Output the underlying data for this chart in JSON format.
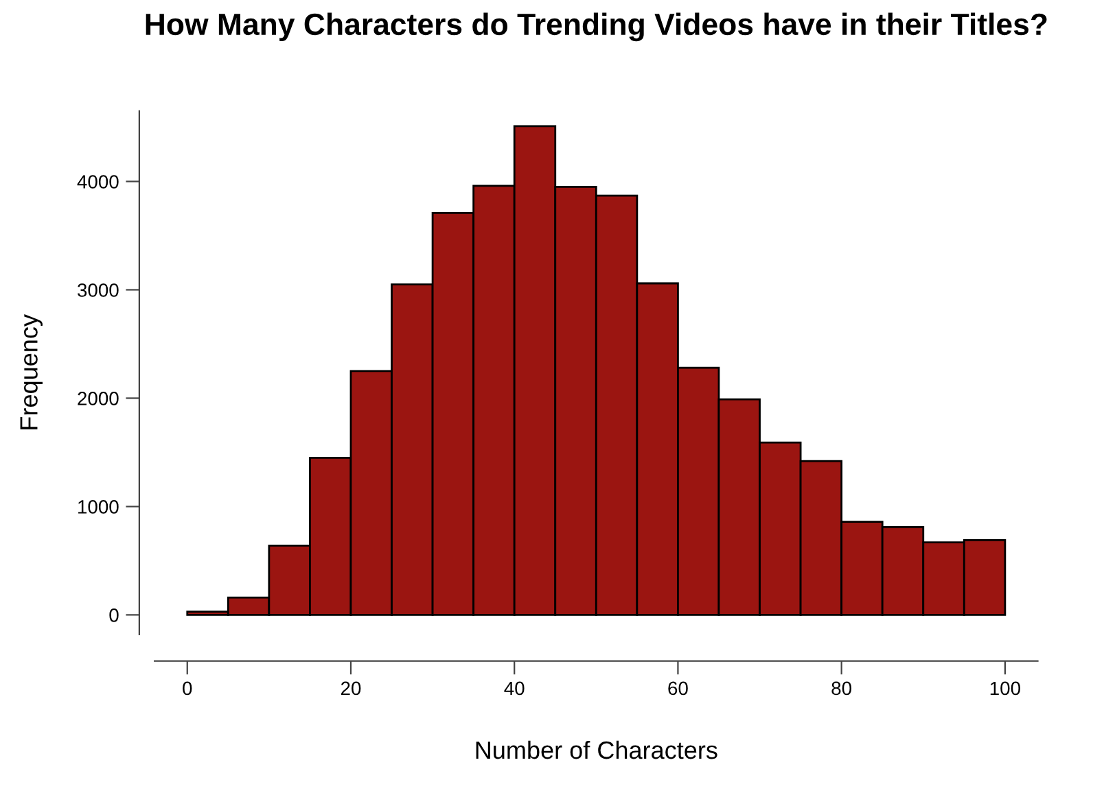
{
  "chart_data": {
    "type": "histogram",
    "title": "How Many Characters do Trending Videos have in their Titles?",
    "xlabel": "Number of Characters",
    "ylabel": "Frequency",
    "bins": [
      0,
      5,
      10,
      15,
      20,
      25,
      30,
      35,
      40,
      45,
      50,
      55,
      60,
      65,
      70,
      75,
      80,
      85,
      90,
      95,
      100
    ],
    "values": [
      30,
      160,
      640,
      1450,
      2250,
      3050,
      3710,
      3960,
      4510,
      3950,
      3870,
      3060,
      2280,
      1990,
      1590,
      1420,
      860,
      810,
      670,
      690
    ],
    "color": "#9b1511",
    "xlim": [
      -4,
      104
    ],
    "xticks": [
      0,
      20,
      40,
      60,
      80,
      100
    ],
    "ylim": [
      -180,
      4650
    ],
    "yticks": [
      0,
      1000,
      2000,
      3000,
      4000
    ],
    "grid": false
  }
}
